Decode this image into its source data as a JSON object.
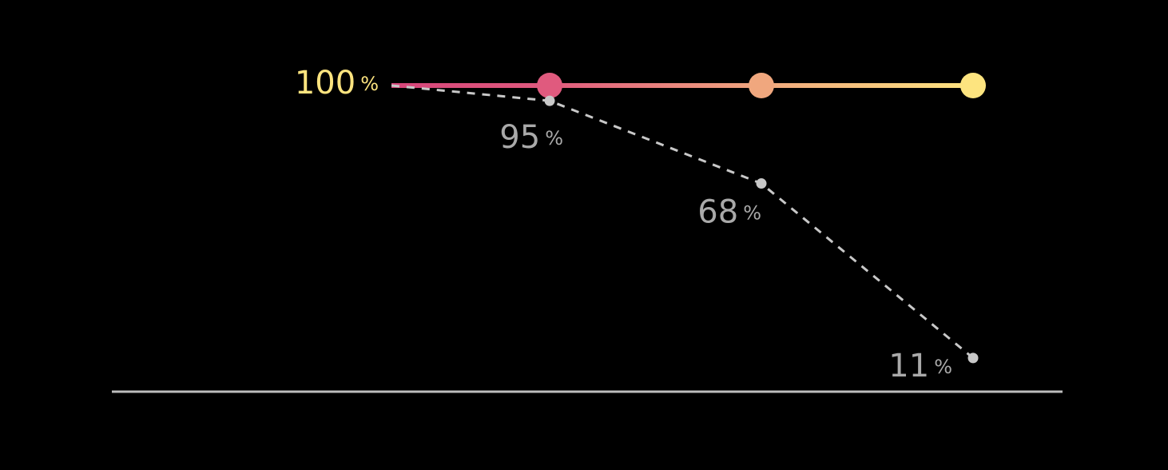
{
  "chart_data": {
    "type": "line",
    "categories": [
      null,
      null,
      null,
      null
    ],
    "series": [
      {
        "color": [
          "#d6457a",
          "#e05a7e",
          "#f0a77e",
          "#fde47f"
        ],
        "values": [
          100,
          100,
          100,
          100
        ]
      },
      {
        "color": "#c8c8c8",
        "values": [
          100,
          95,
          68,
          11
        ],
        "dashed": true
      }
    ],
    "unit_label": "%",
    "ylim": [
      0,
      100
    ],
    "baseline_color": "#bdbdbd",
    "background": "#000000"
  }
}
